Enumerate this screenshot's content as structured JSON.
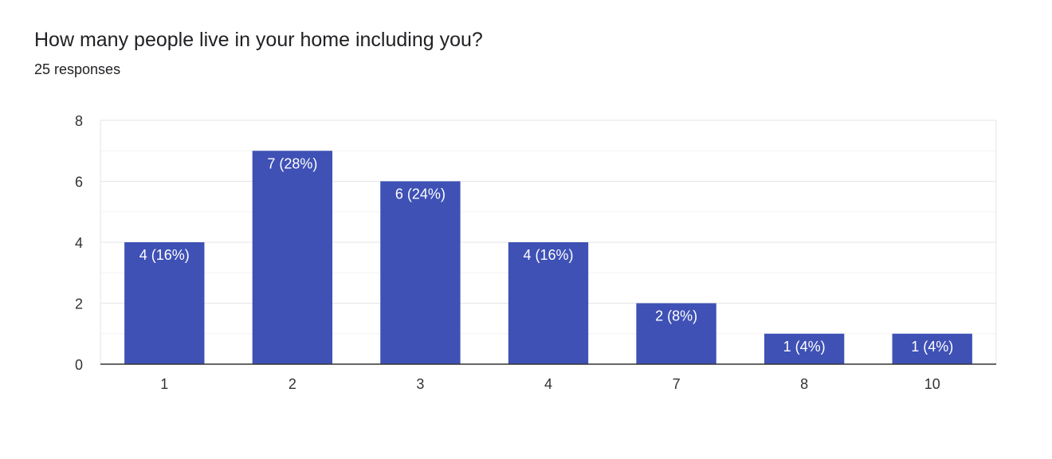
{
  "header": {
    "question": "How many people live in your home including you?",
    "responses": "25 responses"
  },
  "colors": {
    "bar": "#3f51b5",
    "bar_label": "#ffffff"
  },
  "chart_data": {
    "type": "bar",
    "title": "How many people live in your home including you?",
    "subtitle": "25 responses",
    "categories": [
      "1",
      "2",
      "3",
      "4",
      "7",
      "8",
      "10"
    ],
    "values": [
      4,
      7,
      6,
      4,
      2,
      1,
      1
    ],
    "data_labels": [
      "4 (16%)",
      "7 (28%)",
      "6 (24%)",
      "4 (16%)",
      "2 (8%)",
      "1 (4%)",
      "1 (4%)"
    ],
    "ylim": [
      0,
      8
    ],
    "yticks": [
      0,
      2,
      4,
      6,
      8
    ],
    "xlabel": "",
    "ylabel": "",
    "grid": true,
    "legend": "none"
  }
}
